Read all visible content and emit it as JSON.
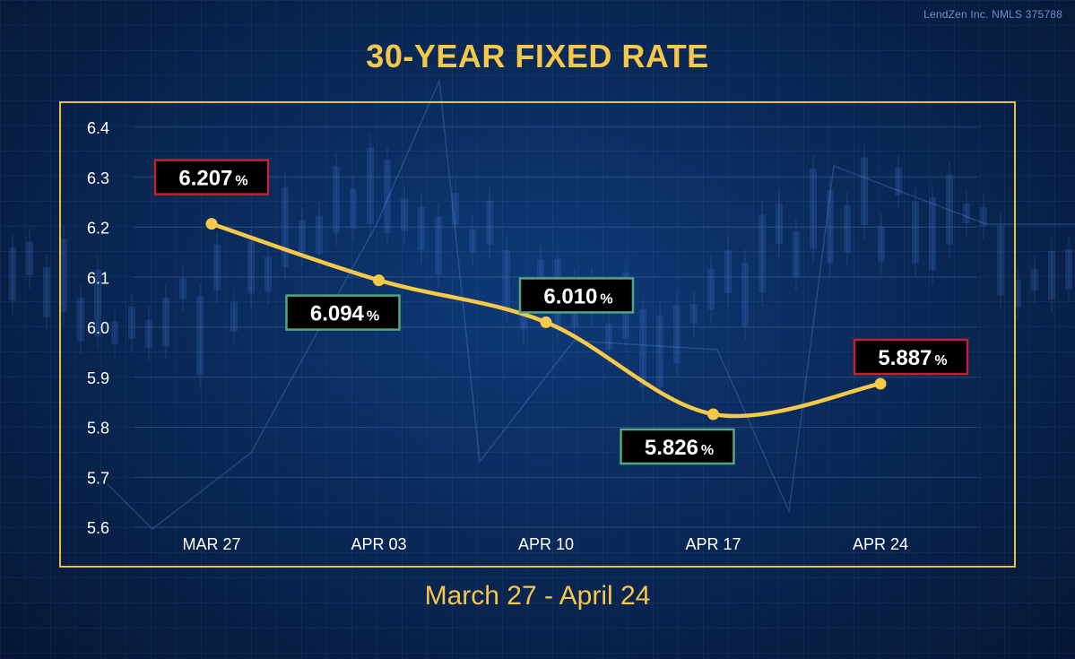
{
  "header": {
    "watermark": "LendZen Inc. NMLS 375788",
    "title": "30-YEAR FIXED RATE",
    "subtitle": "March 27 - April 24"
  },
  "colors": {
    "line": "#f7c948",
    "frame": "#e8c13a",
    "up_box": "#c0232c",
    "down_box": "#52a77e",
    "label_bg": "#000000",
    "label_text": "#ffffff",
    "tick_text": "#ffffff",
    "grid": "#3a5a8c"
  },
  "chart_data": {
    "type": "line",
    "title": "30-YEAR FIXED RATE",
    "xlabel": "",
    "ylabel": "",
    "categories": [
      "MAR 27",
      "APR 03",
      "APR 10",
      "APR 17",
      "APR 24"
    ],
    "series": [
      {
        "values": [
          6.207,
          6.094,
          6.01,
          5.826,
          5.887
        ]
      }
    ],
    "data_labels": [
      {
        "value": "6.207",
        "unit": "%",
        "box": "up",
        "placement": "above"
      },
      {
        "value": "6.094",
        "unit": "%",
        "box": "down",
        "placement": "below-left"
      },
      {
        "value": "6.010",
        "unit": "%",
        "box": "down",
        "placement": "above-right"
      },
      {
        "value": "5.826",
        "unit": "%",
        "box": "down",
        "placement": "below-left"
      },
      {
        "value": "5.887",
        "unit": "%",
        "box": "up",
        "placement": "above-right"
      }
    ],
    "ylim": [
      5.6,
      6.4
    ],
    "yticks": [
      "5.6",
      "5.7",
      "5.8",
      "5.9",
      "6.0",
      "6.1",
      "6.2",
      "6.3",
      "6.4"
    ],
    "grid": true,
    "legend": "none"
  }
}
